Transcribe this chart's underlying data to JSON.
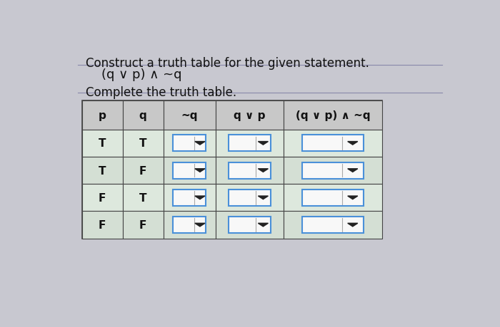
{
  "title_line1": "Construct a truth table for the given statement.",
  "title_line2": "(q ∨ p) ∧ ~q",
  "subtitle": "Complete the truth table.",
  "col_headers": [
    "p",
    "q",
    "~q",
    "q ∨ p",
    "(q ∨ p) ∧ ~q"
  ],
  "rows": [
    [
      "T",
      "T",
      "",
      "",
      ""
    ],
    [
      "T",
      "F",
      "",
      "",
      ""
    ],
    [
      "F",
      "T",
      "",
      "",
      ""
    ],
    [
      "F",
      "F",
      "",
      "",
      ""
    ]
  ],
  "dropdown_cols": [
    2,
    3,
    4
  ],
  "bg_color": "#c8c8d0",
  "table_bg": "#e0e0e0",
  "dropdown_bg": "#f8f8f8",
  "dropdown_border": "#4a90d9",
  "text_color": "#111111",
  "header_font_size": 11,
  "body_font_size": 11,
  "title_font_size": 12
}
